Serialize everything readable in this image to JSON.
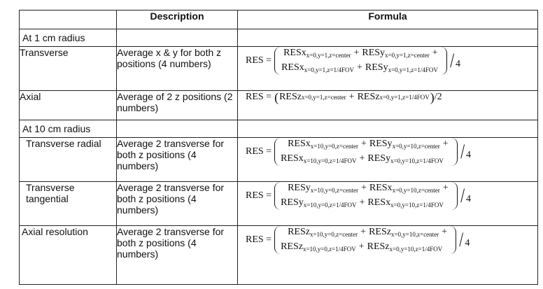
{
  "header": {
    "col1": "",
    "col2": "Description",
    "col3": "Formula"
  },
  "sections": {
    "s1": "At 1 cm radius",
    "s10": "At 10 cm radius"
  },
  "rows": {
    "transverse": {
      "label": "Transverse",
      "desc": "Average x & y for both z positions (4 numbers)",
      "lhs": "RES =",
      "t1": "RESx",
      "t1s": "x=0,y=1,z=center",
      "t2": "RESy",
      "t2s": "x=0,y=1,z=center",
      "b1": "RESx",
      "b1s": "x=0,y=1,z=1/4FOV",
      "b2": "RESy",
      "b2s": "x=0,y=1,z=1/4FOV",
      "plus": "+",
      "den": "4"
    },
    "axial": {
      "label": "Axial",
      "desc": "Average of 2 z positions (2 numbers)",
      "lhs": "RES =",
      "t1": "RESz",
      "t1s": "x=0,y=1,z=center",
      "t2": "RESz",
      "t2s": "x=0,y=1,z=1/4FOV",
      "plus": "+",
      "den": "2"
    },
    "radial": {
      "label": "Transverse radial",
      "desc": "Average 2 transverse for both z positions (4 numbers)",
      "lhs": "RES =",
      "t1": "RESx",
      "t1s": "x=10,y=0,z=center",
      "t2": "RESy",
      "t2s": "x=0,y=10,z=center",
      "b1": "RESx",
      "b1s": "x=10,y=0,z=1/4FOV",
      "b2": "RESy",
      "b2s": "x=0,y=10,z=1/4FOV",
      "plus": "+",
      "den": "4"
    },
    "tangential": {
      "label": "Transverse tangential",
      "desc": "Average 2 transverse for both z positions (4 numbers)",
      "lhs": "RES =",
      "t1": "RESy",
      "t1s": "x=10,y=0,z=center",
      "t2": "RESx",
      "t2s": "x=0,y=10,z=center",
      "b1": "RESy",
      "b1s": "x=10,y=0,z=1/4FOV",
      "b2": "RESx",
      "b2s": "x=0,y=10,z=1/4FOV",
      "plus": "+",
      "den": "4"
    },
    "axialres": {
      "label": "Axial resolution",
      "desc": "Average 2 transverse for both z positions (4 numbers)",
      "lhs": "RES =",
      "t1": "RESz",
      "t1s": "x=10,y=0,z=center",
      "t2": "RESz",
      "t2s": "x=0,y=10,z=center",
      "b1": "RESz",
      "b1s": "x=10,y=0,z=1/4FOV",
      "b2": "RESz",
      "b2s": "x=0,y=10,z=1/4FOV",
      "plus": "+",
      "den": "4"
    }
  }
}
